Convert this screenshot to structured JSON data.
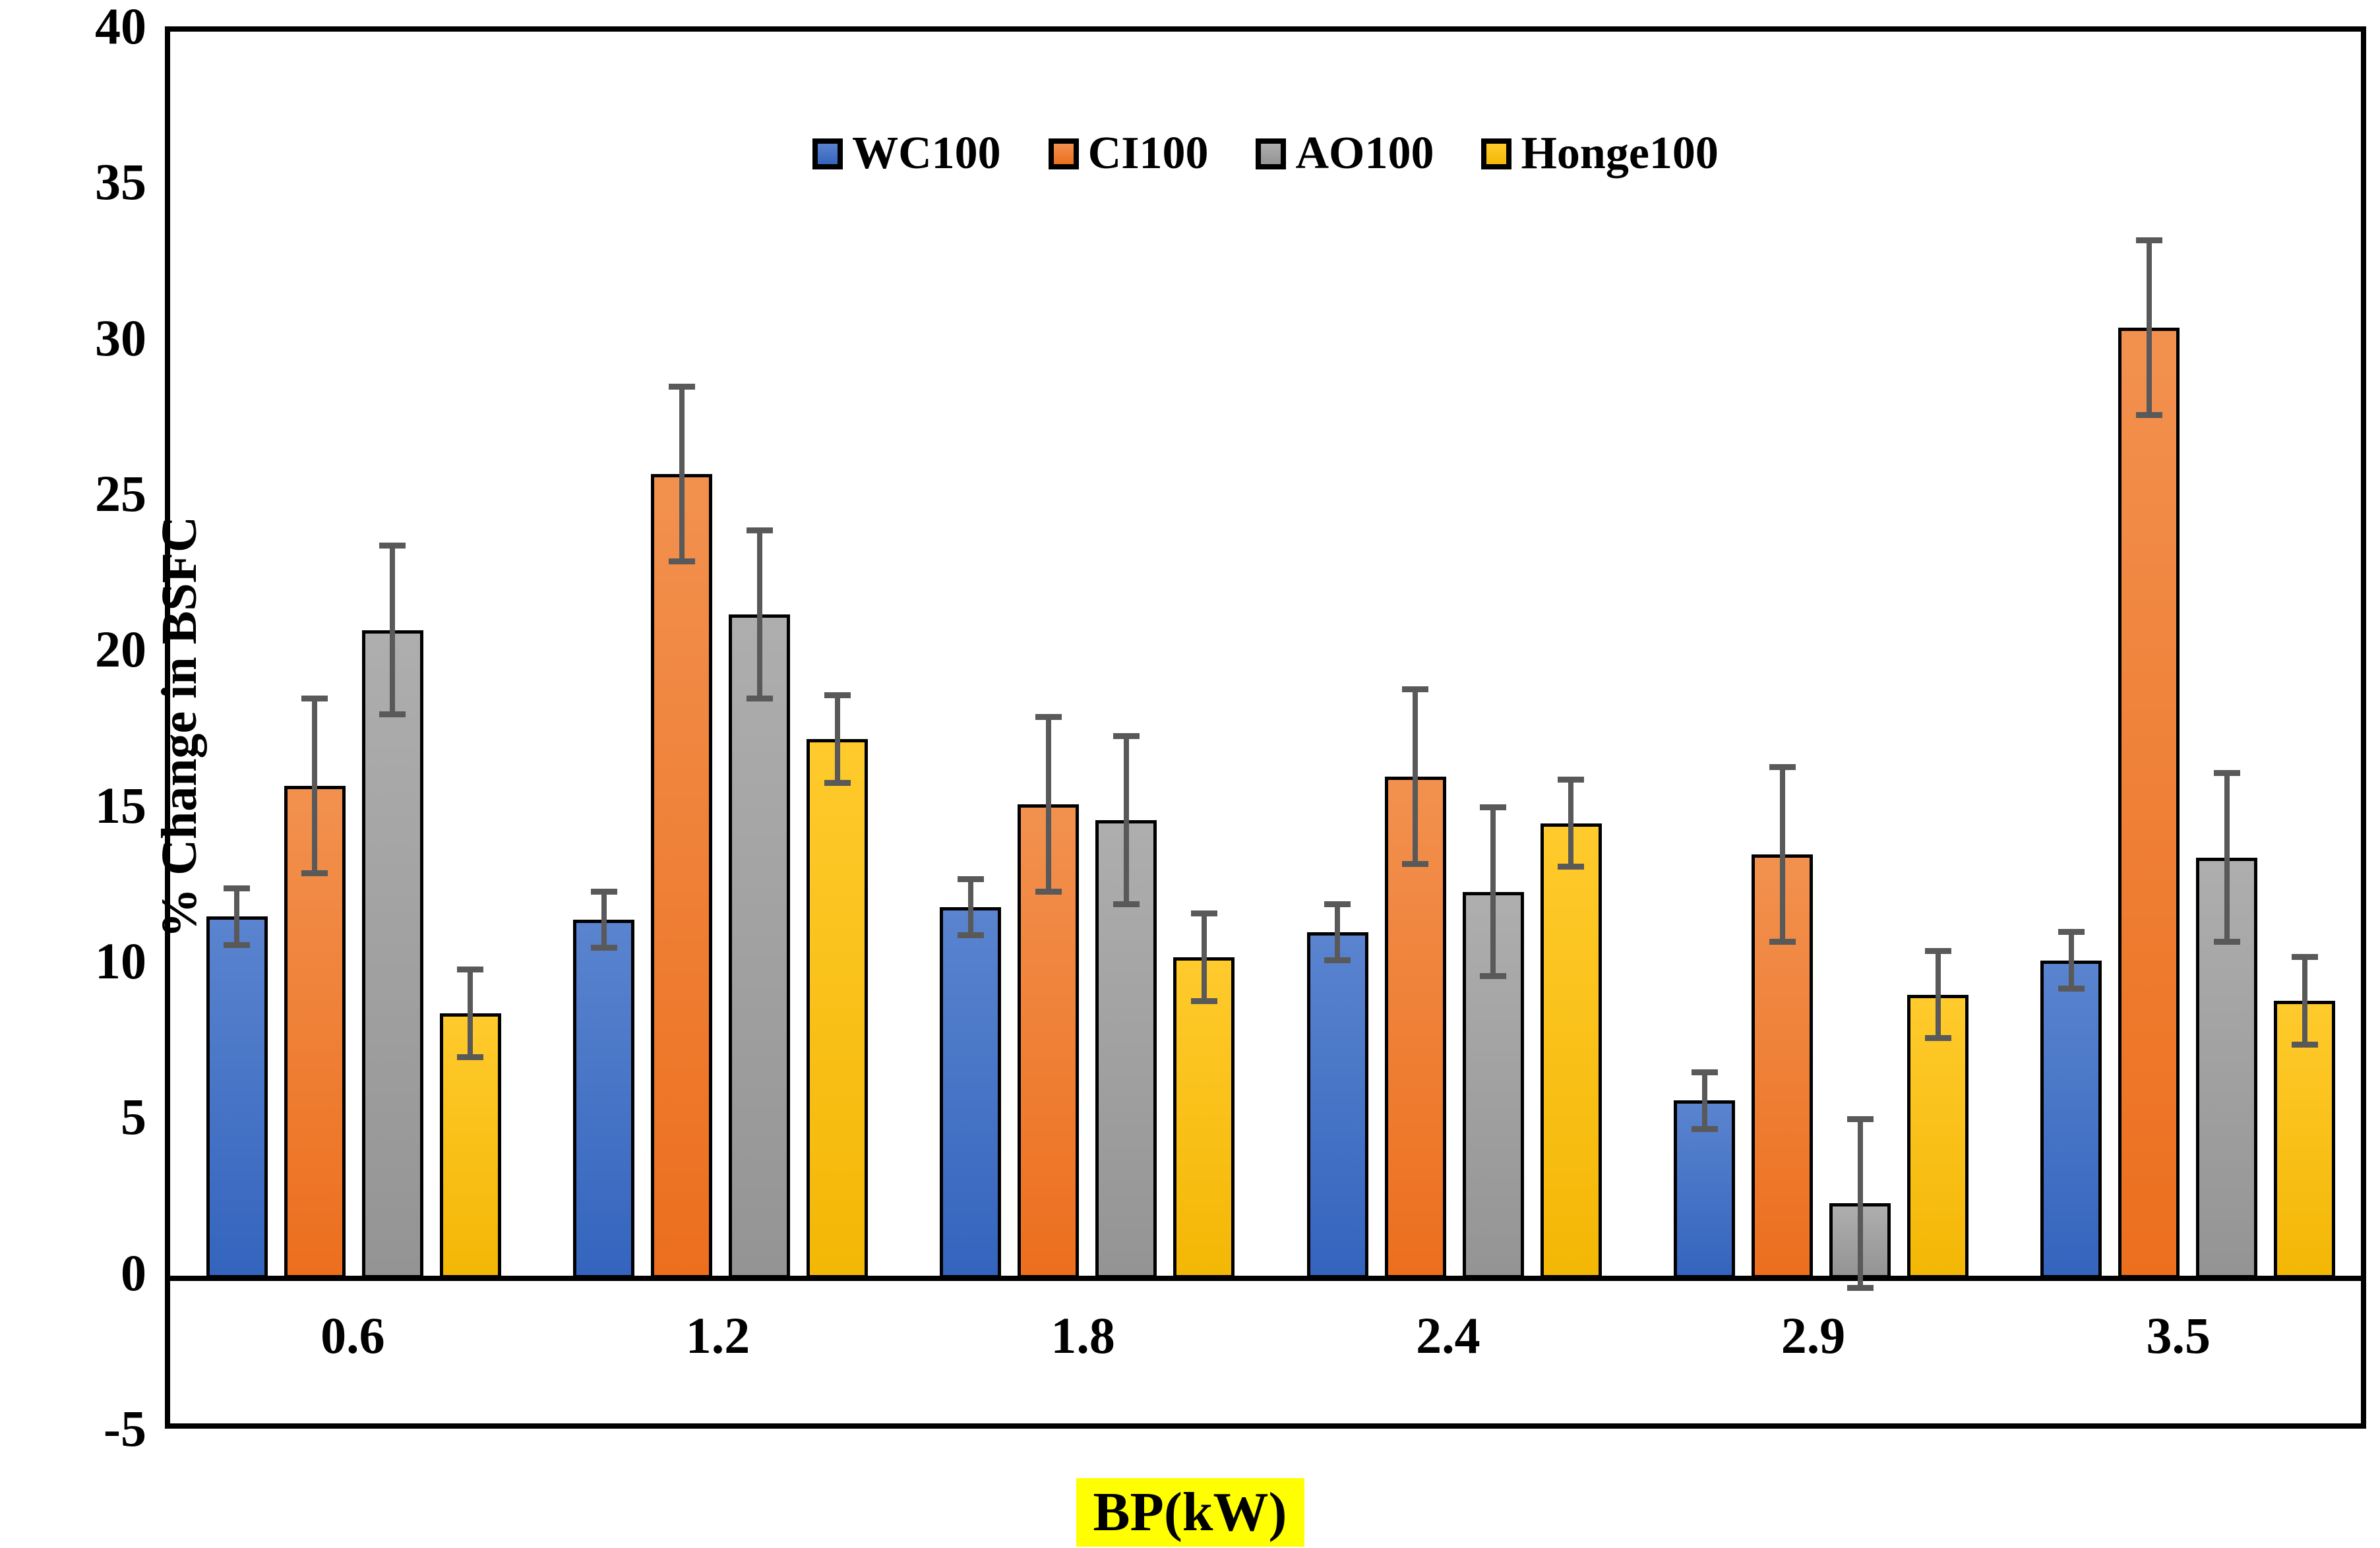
{
  "figure": {
    "background": "#ffffff"
  },
  "axes": {
    "y_title": "% Change in BSFC",
    "x_title": "BP(kW)",
    "x_title_highlight": "#ffff00",
    "y_tick_labels": [
      "40",
      "35",
      "30",
      "25",
      "20",
      "15",
      "10",
      "5",
      "0",
      "-5"
    ],
    "x_tick_labels": [
      "0.6",
      "1.2",
      "1.8",
      "2.4",
      "2.9",
      "3.5"
    ]
  },
  "legend": {
    "items": [
      "WC100",
      "CI100",
      "AO100",
      "Honge100"
    ]
  },
  "chart_data": {
    "type": "bar",
    "title": "",
    "xlabel": "BP(kW)",
    "ylabel": "% Change in BSFC",
    "ylim": [
      -5,
      40
    ],
    "y_tick_step": 5,
    "grid": false,
    "legend_position": "top-center",
    "bar_baseline": 0,
    "categories": [
      "0.6",
      "1.2",
      "1.8",
      "2.4",
      "2.9",
      "3.5"
    ],
    "series": [
      {
        "name": "WC100",
        "color": "#4472C4",
        "color_top": "#5A84CF",
        "color_bottom": "#3464BD",
        "values": [
          11.6,
          11.5,
          11.9,
          11.1,
          5.7,
          10.2
        ],
        "errors": [
          1.0,
          1.0,
          1.0,
          1.0,
          1.0,
          1.0
        ]
      },
      {
        "name": "CI100",
        "color": "#ED7D31",
        "color_top": "#F2914F",
        "color_bottom": "#EC6F1E",
        "values": [
          15.8,
          25.8,
          15.2,
          16.1,
          13.6,
          30.5
        ],
        "errors": [
          2.9,
          2.9,
          2.9,
          2.9,
          2.9,
          2.9
        ]
      },
      {
        "name": "AO100",
        "color": "#A5A5A5",
        "color_top": "#AEAEAE",
        "color_bottom": "#949494",
        "values": [
          20.8,
          21.3,
          14.7,
          12.4,
          2.4,
          13.5
        ],
        "errors": [
          2.8,
          2.8,
          2.8,
          2.8,
          2.8,
          2.8
        ]
      },
      {
        "name": "Honge100",
        "color": "#FFC000",
        "color_top": "#FFCA2C",
        "color_bottom": "#F3B705",
        "values": [
          8.5,
          17.3,
          10.3,
          14.6,
          9.1,
          8.9
        ],
        "errors": [
          1.5,
          1.5,
          1.5,
          1.5,
          1.5,
          1.5
        ]
      }
    ],
    "error_bar_color": "#595959",
    "bar_border_color": "#000000"
  }
}
